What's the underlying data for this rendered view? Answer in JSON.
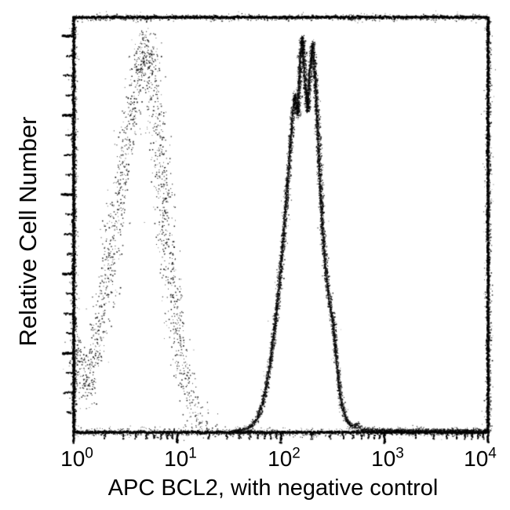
{
  "figure_type": "flow-cytometry-histogram",
  "background_color": "#ffffff",
  "ink_color": "#000000",
  "chart_data": {
    "type": "line",
    "title": "",
    "xlabel": "APC BCL2, with negative control",
    "ylabel": "Relative Cell Number",
    "legend_shown": false,
    "grid": false,
    "x_axis": {
      "scale": "log10",
      "min_exp": 0,
      "max_exp": 4,
      "ticks": [
        {
          "base": "10",
          "exp": "0"
        },
        {
          "base": "10",
          "exp": "1"
        },
        {
          "base": "10",
          "exp": "2"
        },
        {
          "base": "10",
          "exp": "3"
        },
        {
          "base": "10",
          "exp": "4"
        }
      ],
      "minor_tick_positions_per_decade": [
        2,
        3,
        4,
        5,
        6,
        7,
        8,
        9
      ]
    },
    "y_axis": {
      "scale": "linear",
      "range": [
        0,
        1
      ],
      "tick_labels": [],
      "major_tick_count": 5,
      "minor_ticks_per_major": 3
    },
    "series": [
      {
        "name": "negative control",
        "line_style": "dotted",
        "color": "#000000",
        "peak_log_x": 0.7,
        "points": [
          [
            0.0,
            0.16
          ],
          [
            0.04,
            0.21
          ],
          [
            0.08,
            0.17
          ],
          [
            0.13,
            0.09
          ],
          [
            0.17,
            0.15
          ],
          [
            0.22,
            0.22
          ],
          [
            0.27,
            0.3
          ],
          [
            0.32,
            0.38
          ],
          [
            0.38,
            0.48
          ],
          [
            0.44,
            0.58
          ],
          [
            0.5,
            0.68
          ],
          [
            0.56,
            0.79
          ],
          [
            0.61,
            0.87
          ],
          [
            0.65,
            0.94
          ],
          [
            0.68,
            0.89
          ],
          [
            0.71,
            0.95
          ],
          [
            0.74,
            0.9
          ],
          [
            0.78,
            0.82
          ],
          [
            0.82,
            0.7
          ],
          [
            0.86,
            0.58
          ],
          [
            0.91,
            0.45
          ],
          [
            0.96,
            0.33
          ],
          [
            1.01,
            0.24
          ],
          [
            1.06,
            0.16
          ],
          [
            1.12,
            0.09
          ],
          [
            1.19,
            0.045
          ],
          [
            1.26,
            0.02
          ],
          [
            1.33,
            0.008
          ]
        ]
      },
      {
        "name": "APC BCL2",
        "line_style": "solid",
        "color": "#000000",
        "peak_log_x": 2.2,
        "points": [
          [
            1.52,
            0.003
          ],
          [
            1.62,
            0.006
          ],
          [
            1.7,
            0.012
          ],
          [
            1.76,
            0.03
          ],
          [
            1.82,
            0.07
          ],
          [
            1.87,
            0.13
          ],
          [
            1.91,
            0.2
          ],
          [
            1.95,
            0.28
          ],
          [
            1.99,
            0.38
          ],
          [
            2.03,
            0.5
          ],
          [
            2.06,
            0.6
          ],
          [
            2.09,
            0.7
          ],
          [
            2.11,
            0.77
          ],
          [
            2.135,
            0.82
          ],
          [
            2.16,
            0.77
          ],
          [
            2.185,
            0.91
          ],
          [
            2.205,
            0.96
          ],
          [
            2.23,
            0.86
          ],
          [
            2.255,
            0.78
          ],
          [
            2.28,
            0.88
          ],
          [
            2.305,
            0.945
          ],
          [
            2.33,
            0.85
          ],
          [
            2.355,
            0.72
          ],
          [
            2.38,
            0.58
          ],
          [
            2.41,
            0.46
          ],
          [
            2.44,
            0.37
          ],
          [
            2.47,
            0.31
          ],
          [
            2.5,
            0.27
          ],
          [
            2.53,
            0.19
          ],
          [
            2.56,
            0.11
          ],
          [
            2.59,
            0.06
          ],
          [
            2.63,
            0.03
          ],
          [
            2.68,
            0.015
          ],
          [
            2.73,
            0.02
          ],
          [
            2.77,
            0.008
          ],
          [
            2.85,
            0.006
          ],
          [
            3.0,
            0.005
          ],
          [
            3.2,
            0.005
          ],
          [
            3.45,
            0.004
          ],
          [
            3.7,
            0.004
          ],
          [
            4.0,
            0.003
          ]
        ]
      }
    ]
  }
}
